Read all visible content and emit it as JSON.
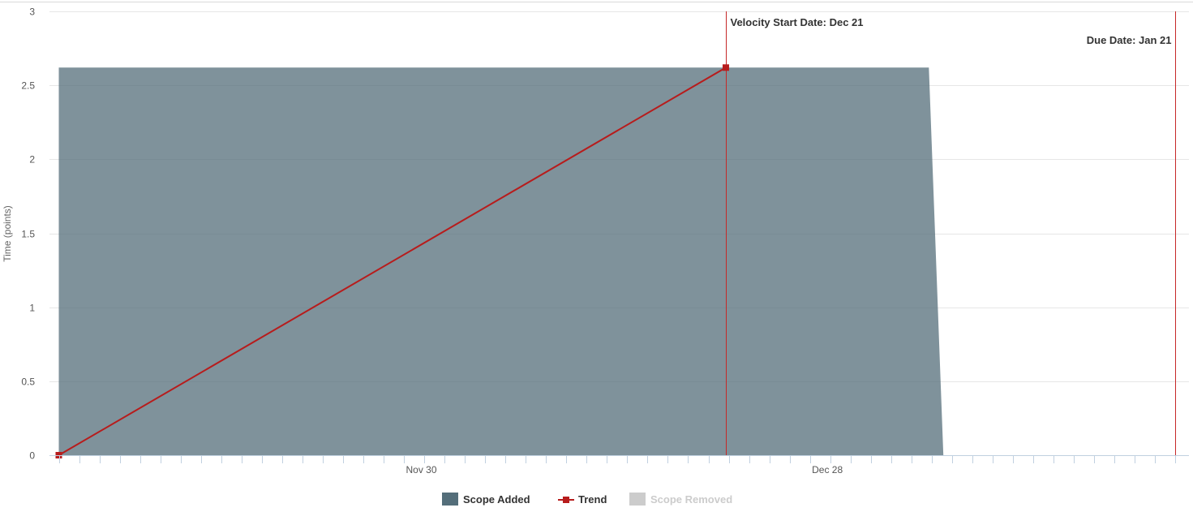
{
  "chart_data": {
    "type": "area",
    "title": "",
    "xlabel": "",
    "ylabel": "Time (points)",
    "x_ticks": [
      {
        "date": "2018-11-30",
        "label": "Nov 30"
      },
      {
        "date": "2018-12-28",
        "label": "Dec 28"
      }
    ],
    "xlim": [
      "2018-11-05",
      "2019-01-21"
    ],
    "ylim": [
      0,
      3
    ],
    "y_ticks": [
      "0",
      "0.5",
      "1",
      "1.5",
      "2",
      "2.5",
      "3"
    ],
    "y_tick_values": [
      0,
      0.5,
      1,
      1.5,
      2,
      2.5,
      3
    ],
    "grid": true,
    "legend_position": "bottom-center",
    "series": [
      {
        "name": "Scope Added",
        "type": "area",
        "color": "#546e7a",
        "points": [
          {
            "x": "2018-11-05",
            "y": 2.62
          },
          {
            "x": "2019-01-04",
            "y": 2.62
          },
          {
            "x": "2019-01-05",
            "y": 0
          }
        ]
      },
      {
        "name": "Trend",
        "type": "line",
        "color": "#b71c1c",
        "marker": "square",
        "points": [
          {
            "x": "2018-11-05",
            "y": 0
          },
          {
            "x": "2018-12-21",
            "y": 2.62
          }
        ]
      },
      {
        "name": "Scope Removed",
        "type": "area",
        "color": "#cccccc",
        "visible": false,
        "points": []
      }
    ],
    "plot_lines": [
      {
        "date": "2018-12-21",
        "label": "Velocity Start Date: Dec 21",
        "color": "#c62828"
      },
      {
        "date": "2019-01-21",
        "label": "Due Date: Jan 21",
        "color": "#c62828"
      }
    ]
  }
}
